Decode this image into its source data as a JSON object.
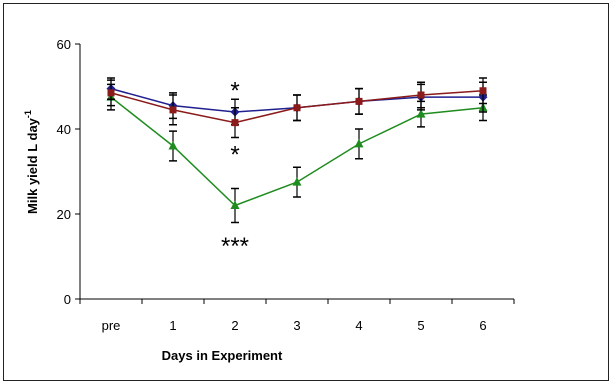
{
  "chart_data": {
    "type": "line",
    "xlabel": "Days in Experiment",
    "ylabel": "Milk yield L day",
    "ylabel_superscript": "-1",
    "categories": [
      "pre",
      "1",
      "2",
      "3",
      "4",
      "5",
      "6"
    ],
    "ylim": [
      0,
      60
    ],
    "yticks": [
      "0",
      "20",
      "40",
      "60"
    ],
    "grid": false,
    "series": [
      {
        "color": "#1f1f8f",
        "marker": "diamond",
        "values": [
          49.5,
          45.5,
          44.0,
          45.0,
          46.5,
          47.5,
          47.5
        ],
        "errors": [
          2.5,
          3.0,
          3.0,
          3.0,
          3.0,
          3.0,
          3.5
        ]
      },
      {
        "color": "#8b1a1a",
        "marker": "square",
        "values": [
          48.5,
          44.5,
          41.5,
          45.0,
          46.5,
          48.0,
          49.0
        ],
        "errors": [
          3.0,
          3.5,
          3.5,
          3.0,
          3.0,
          3.0,
          3.0
        ]
      },
      {
        "color": "#1e8c1e",
        "marker": "triangle",
        "values": [
          47.5,
          36.0,
          22.0,
          27.5,
          36.5,
          43.5,
          45.0
        ],
        "errors": [
          3.0,
          3.5,
          4.0,
          3.5,
          3.5,
          3.0,
          3.0
        ]
      }
    ],
    "annotations": [
      {
        "text": "*",
        "x": "2",
        "y": 49.5
      },
      {
        "text": "*",
        "x": "2",
        "y": 34.5
      },
      {
        "text": "***",
        "x": "2",
        "y": 13.0
      }
    ]
  }
}
